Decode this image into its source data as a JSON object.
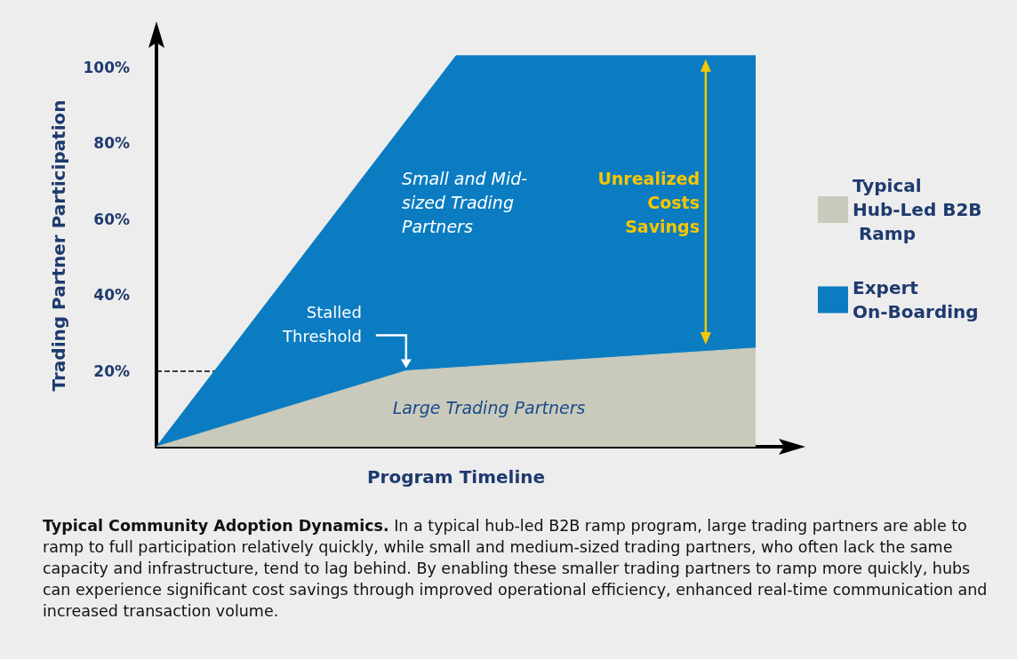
{
  "chart_data": {
    "type": "area",
    "xlabel": "Program Timeline",
    "ylabel": "Trading Partner Participation",
    "categories": [
      null,
      null,
      null,
      null,
      null,
      null,
      null,
      null,
      null,
      null,
      null,
      null,
      null
    ],
    "series": [
      {
        "name": "Typical Hub-Led B2B Ramp",
        "color": "#c9cabb",
        "values": [
          0,
          null,
          null,
          null,
          null,
          20,
          null,
          null,
          null,
          null,
          null,
          null,
          26
        ]
      },
      {
        "name": "Expert On-Boarding",
        "color": "#0b7cc1",
        "values": [
          0,
          null,
          null,
          null,
          null,
          null,
          103,
          null,
          null,
          null,
          null,
          null,
          103
        ]
      }
    ],
    "ylim": [
      0,
      106
    ],
    "yticks": [
      {
        "value": 20,
        "label": "20%"
      },
      {
        "value": 40,
        "label": "40%"
      },
      {
        "value": 60,
        "label": "60%"
      },
      {
        "value": 80,
        "label": "80%"
      },
      {
        "value": 100,
        "label": "100%"
      }
    ],
    "tick_labels": "y",
    "grid": false,
    "legend": "right",
    "marker": "none",
    "line_style": "solid",
    "ref_lines": [
      {
        "axis": "y",
        "value": 20,
        "label": "Stalled Threshold",
        "line_style": "dashed",
        "color": "#000000"
      }
    ],
    "annotations": [
      "Small and Mid-sized Trading Partners",
      "Unrealized Costs Savings",
      "Large Trading Partners",
      "Typical Community Adoption Dynamics.",
      "In a typical hub-led B2B ramp program, large trading partners are able to ramp to full participation relatively quickly, while small and medium-sized trading partners, who often lack the same capacity and infrastructure, tend to lag behind. By enabling these smaller trading partners to ramp more quickly, hubs can experience significant cost savings through improved operational efficiency, enhanced real-time communication and increased transaction volume."
    ]
  }
}
